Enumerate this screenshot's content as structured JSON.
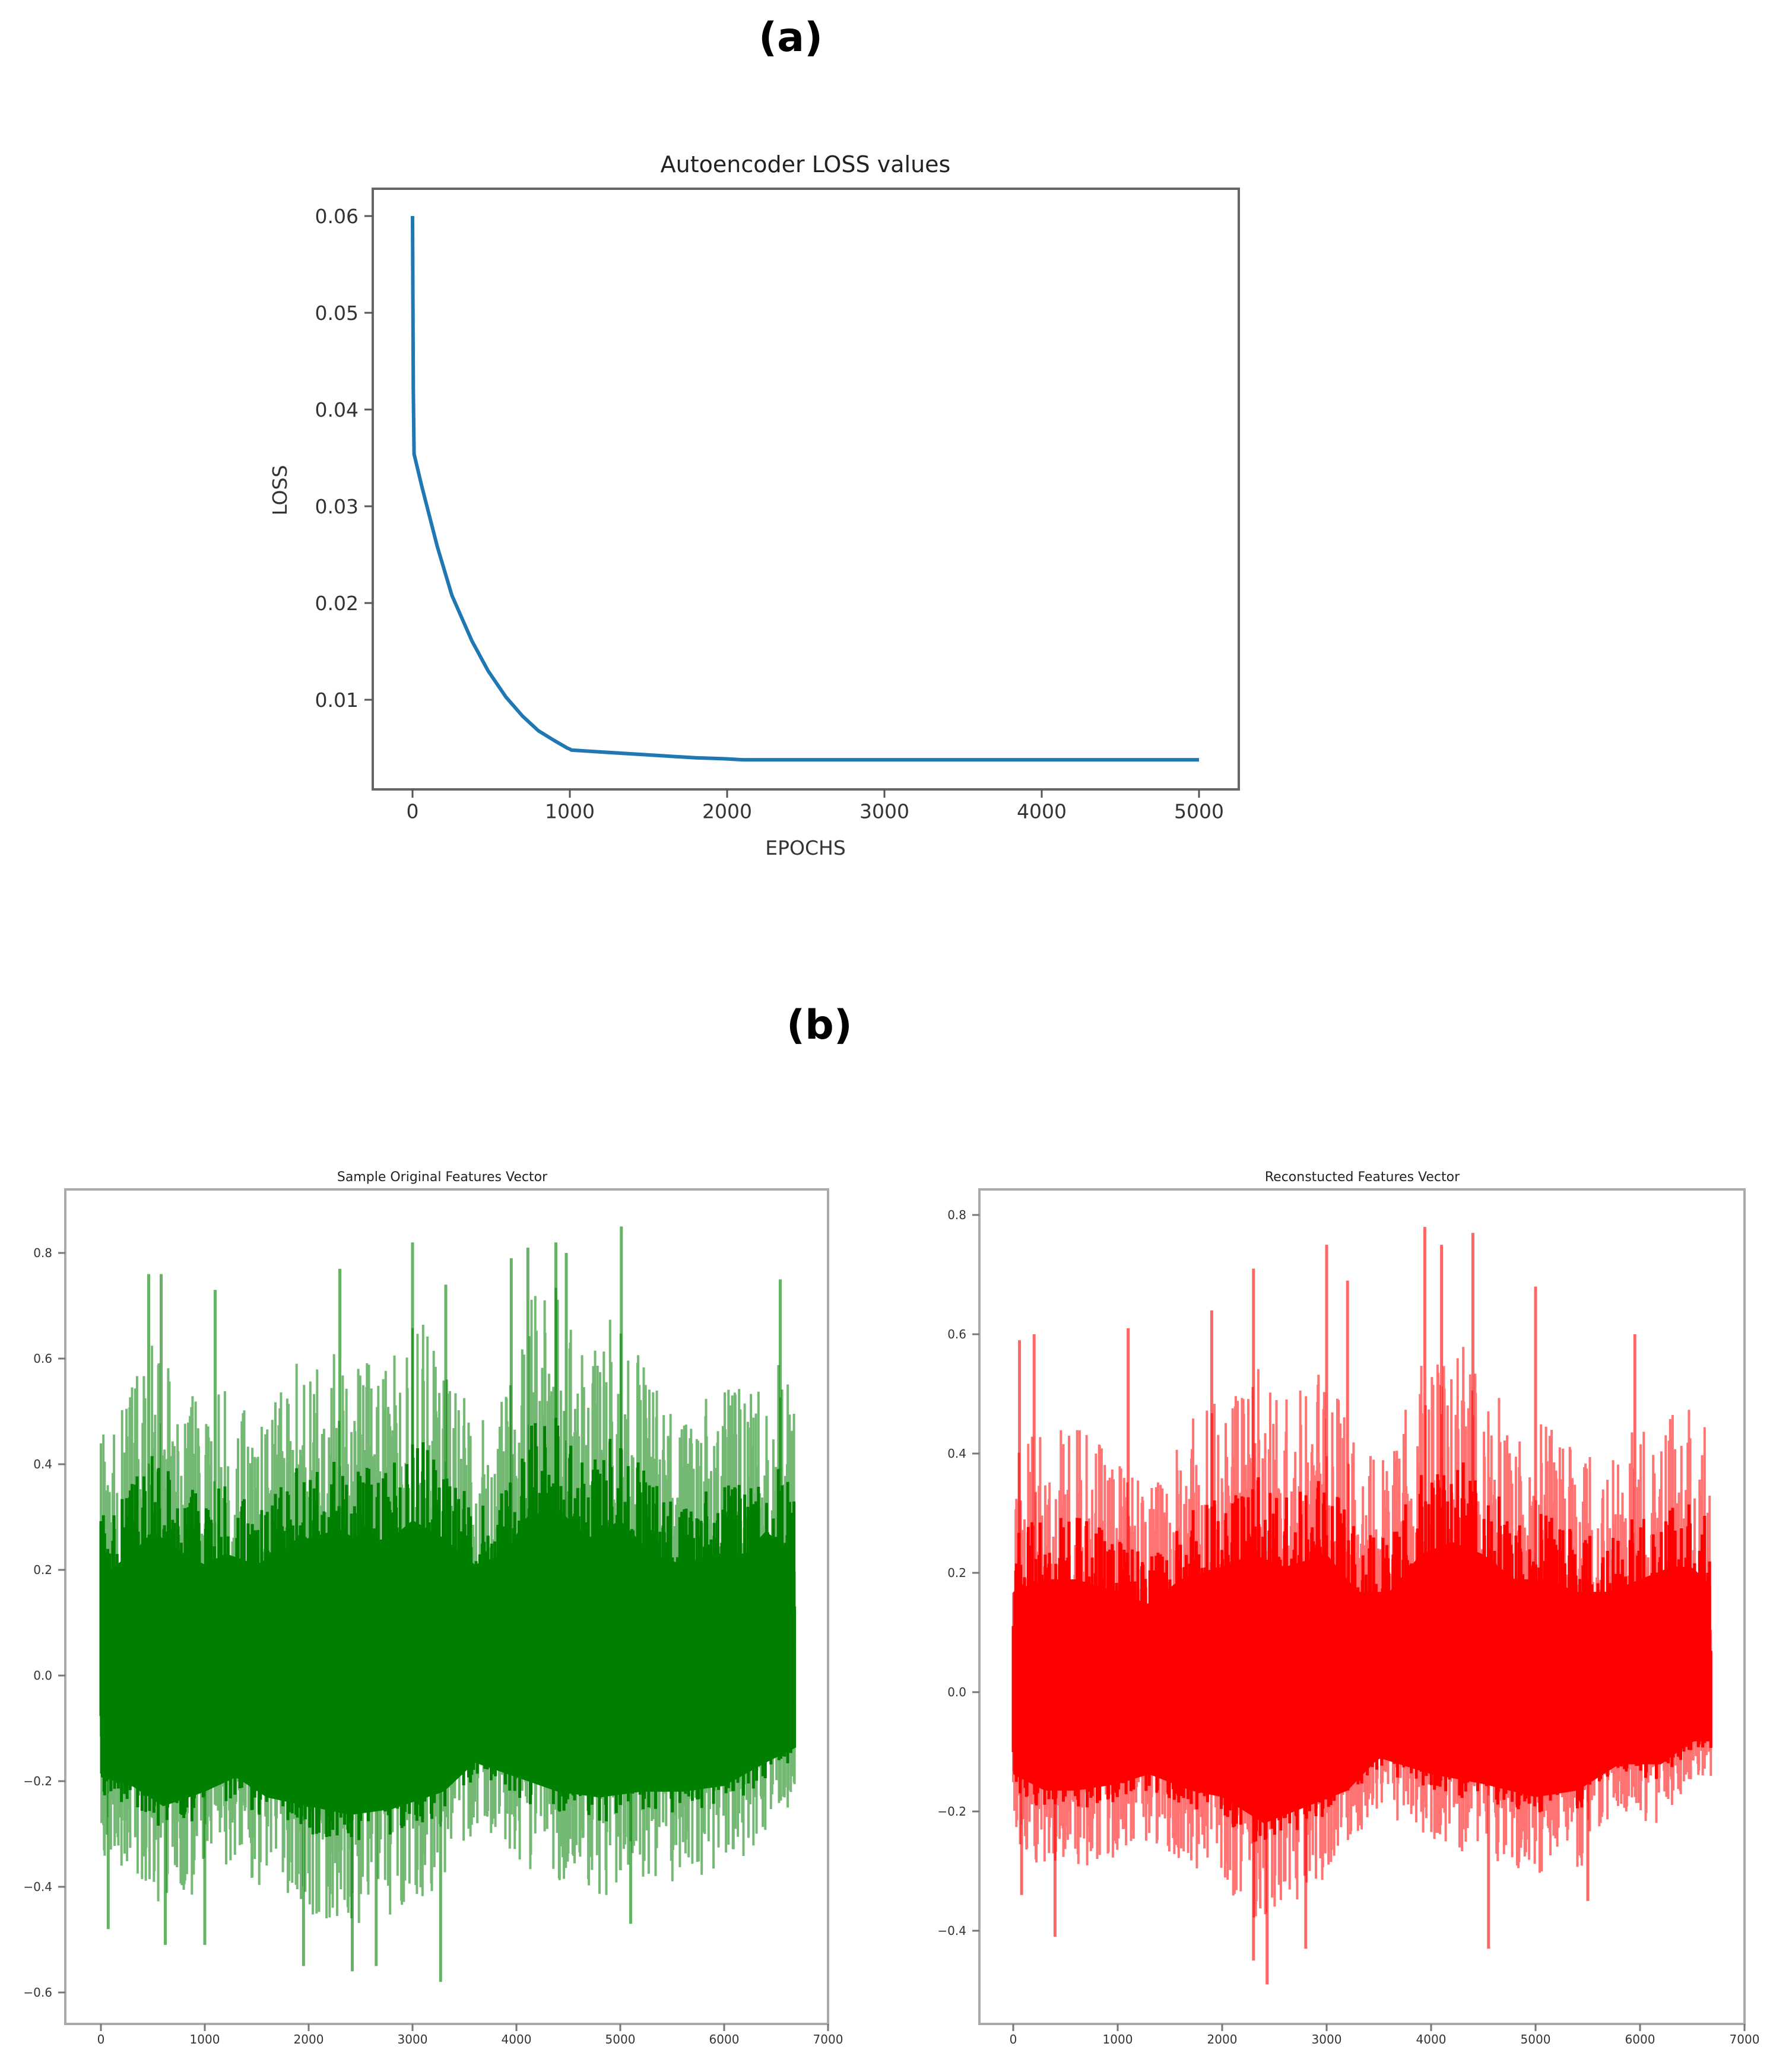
{
  "figure": {
    "panel_a_label": "(a)",
    "panel_b_label": "(b)"
  },
  "chart_data": [
    {
      "id": "loss",
      "type": "line",
      "title": "Autoencoder LOSS values",
      "xlabel": "EPOCHS",
      "ylabel": "LOSS",
      "xlim": [
        -230,
        5230
      ],
      "ylim": [
        0.0012,
        0.0632
      ],
      "xticks": [
        0,
        1000,
        2000,
        3000,
        4000,
        5000
      ],
      "xtick_labels": [
        "0",
        "1000",
        "2000",
        "3000",
        "4000",
        "5000"
      ],
      "yticks": [
        0.01,
        0.02,
        0.03,
        0.04,
        0.05,
        0.06
      ],
      "ytick_labels": [
        "0.01",
        "0.02",
        "0.03",
        "0.04",
        "0.05",
        "0.06"
      ],
      "grid": false,
      "legend": null,
      "color": "#1f77b4",
      "series": [
        {
          "name": "loss",
          "x": [
            0,
            5,
            10,
            60,
            158,
            250,
            377,
            480,
            593,
            700,
            800,
            900,
            985,
            1000,
            1010,
            1200,
            1500,
            1800,
            1981,
            2100,
            2500,
            3000,
            3500,
            4000,
            4500,
            5000
          ],
          "y": [
            0.06,
            0.042,
            0.0354,
            0.032,
            0.0258,
            0.0208,
            0.0161,
            0.013,
            0.0103,
            0.0083,
            0.0068,
            0.0058,
            0.005,
            0.0049,
            0.0048,
            0.0046,
            0.0043,
            0.004,
            0.0039,
            0.0038,
            0.0038,
            0.0038,
            0.0038,
            0.0038,
            0.0038,
            0.0038
          ]
        }
      ]
    },
    {
      "id": "original",
      "type": "line",
      "title": "Sample Original Features Vector",
      "xlabel": "",
      "ylabel": "",
      "xlim": [
        -340,
        7000
      ],
      "ylim": [
        -0.665,
        0.915
      ],
      "xticks": [
        0,
        1000,
        2000,
        3000,
        4000,
        5000,
        6000,
        7000
      ],
      "xtick_labels": [
        "0",
        "1000",
        "2000",
        "3000",
        "4000",
        "5000",
        "6000",
        "7000"
      ],
      "yticks": [
        -0.6,
        -0.4,
        -0.2,
        0.0,
        0.2,
        0.4,
        0.6,
        0.8
      ],
      "ytick_labels": [
        "−0.6",
        "−0.4",
        "−0.2",
        "0.0",
        "0.2",
        "0.4",
        "0.6",
        "0.8"
      ],
      "grid": false,
      "legend": null,
      "color": "#008000",
      "n_points": 6680,
      "description": "dense noisy signal centered near 0, typical range -0.3 to 0.4",
      "envelope_upper": {
        "x": [
          0,
          300,
          500,
          800,
          1000,
          1200,
          1500,
          1800,
          2000,
          2300,
          2500,
          2800,
          3000,
          3300,
          3600,
          3900,
          4100,
          4400,
          4700,
          5000,
          5300,
          5600,
          5900,
          6200,
          6400,
          6680
        ],
        "y": [
          0.45,
          0.55,
          0.65,
          0.55,
          0.5,
          0.55,
          0.5,
          0.58,
          0.62,
          0.66,
          0.6,
          0.62,
          0.7,
          0.62,
          0.5,
          0.55,
          0.72,
          0.75,
          0.62,
          0.7,
          0.55,
          0.5,
          0.55,
          0.55,
          0.65,
          0.55
        ]
      },
      "envelope_lower": {
        "x": [
          0,
          300,
          600,
          1000,
          1300,
          1600,
          2000,
          2400,
          2800,
          3300,
          3600,
          4000,
          4400,
          4800,
          5200,
          5600,
          6000,
          6400,
          6680
        ],
        "y": [
          -0.35,
          -0.38,
          -0.45,
          -0.4,
          -0.35,
          -0.42,
          -0.45,
          -0.48,
          -0.46,
          -0.4,
          -0.3,
          -0.35,
          -0.4,
          -0.42,
          -0.4,
          -0.4,
          -0.38,
          -0.3,
          -0.25
        ]
      },
      "notable_peaks": [
        {
          "x": 460,
          "y": 0.76
        },
        {
          "x": 580,
          "y": 0.76
        },
        {
          "x": 1100,
          "y": 0.73
        },
        {
          "x": 2300,
          "y": 0.77
        },
        {
          "x": 3000,
          "y": 0.82
        },
        {
          "x": 3320,
          "y": 0.74
        },
        {
          "x": 3950,
          "y": 0.79
        },
        {
          "x": 4110,
          "y": 0.81
        },
        {
          "x": 4380,
          "y": 0.82
        },
        {
          "x": 4480,
          "y": 0.8
        },
        {
          "x": 5010,
          "y": 0.85
        },
        {
          "x": 6540,
          "y": 0.75
        }
      ],
      "notable_troughs": [
        {
          "x": 70,
          "y": -0.48
        },
        {
          "x": 620,
          "y": -0.51
        },
        {
          "x": 1000,
          "y": -0.51
        },
        {
          "x": 1950,
          "y": -0.55
        },
        {
          "x": 2420,
          "y": -0.56
        },
        {
          "x": 2650,
          "y": -0.55
        },
        {
          "x": 3270,
          "y": -0.58
        },
        {
          "x": 5100,
          "y": -0.47
        }
      ]
    },
    {
      "id": "reconstructed",
      "type": "line",
      "title": "Reconstucted Features Vector",
      "xlabel": "",
      "ylabel": "",
      "xlim": [
        -340,
        7000
      ],
      "ylim": [
        -0.55,
        0.845
      ],
      "xticks": [
        0,
        1000,
        2000,
        3000,
        4000,
        5000,
        6000,
        7000
      ],
      "xtick_labels": [
        "0",
        "1000",
        "2000",
        "3000",
        "4000",
        "5000",
        "6000",
        "7000"
      ],
      "yticks": [
        -0.4,
        -0.2,
        0.0,
        0.2,
        0.4,
        0.6,
        0.8
      ],
      "ytick_labels": [
        "−0.4",
        "−0.2",
        "0.0",
        "0.2",
        "0.4",
        "0.6",
        "0.8"
      ],
      "grid": false,
      "legend": null,
      "color": "#ff0000",
      "n_points": 6680,
      "description": "dense noisy signal centered near 0, typical range -0.25 to 0.35",
      "envelope_upper": {
        "x": [
          0,
          300,
          600,
          1000,
          1300,
          1600,
          2000,
          2300,
          2600,
          3000,
          3300,
          3600,
          3900,
          4200,
          4500,
          4800,
          5100,
          5400,
          5700,
          6000,
          6300,
          6500,
          6680
        ],
        "y": [
          0.4,
          0.45,
          0.45,
          0.4,
          0.35,
          0.45,
          0.5,
          0.55,
          0.5,
          0.55,
          0.4,
          0.4,
          0.55,
          0.6,
          0.55,
          0.45,
          0.45,
          0.4,
          0.4,
          0.45,
          0.5,
          0.5,
          0.42
        ]
      },
      "envelope_lower": {
        "x": [
          0,
          300,
          600,
          1000,
          1300,
          1700,
          2000,
          2400,
          2800,
          3200,
          3500,
          4000,
          4500,
          5000,
          5400,
          5800,
          6200,
          6500,
          6680
        ],
        "y": [
          -0.25,
          -0.3,
          -0.3,
          -0.28,
          -0.25,
          -0.3,
          -0.32,
          -0.4,
          -0.35,
          -0.3,
          -0.2,
          -0.25,
          -0.28,
          -0.32,
          -0.3,
          -0.22,
          -0.22,
          -0.15,
          -0.15
        ]
      },
      "notable_peaks": [
        {
          "x": 60,
          "y": 0.59
        },
        {
          "x": 200,
          "y": 0.6
        },
        {
          "x": 1100,
          "y": 0.61
        },
        {
          "x": 1900,
          "y": 0.64
        },
        {
          "x": 2300,
          "y": 0.71
        },
        {
          "x": 3000,
          "y": 0.75
        },
        {
          "x": 3200,
          "y": 0.69
        },
        {
          "x": 3940,
          "y": 0.78
        },
        {
          "x": 4100,
          "y": 0.75
        },
        {
          "x": 4400,
          "y": 0.77
        },
        {
          "x": 5000,
          "y": 0.68
        },
        {
          "x": 5950,
          "y": 0.6
        }
      ],
      "notable_troughs": [
        {
          "x": 80,
          "y": -0.34
        },
        {
          "x": 400,
          "y": -0.41
        },
        {
          "x": 2300,
          "y": -0.45
        },
        {
          "x": 2430,
          "y": -0.49
        },
        {
          "x": 2800,
          "y": -0.43
        },
        {
          "x": 4550,
          "y": -0.43
        },
        {
          "x": 5500,
          "y": -0.35
        }
      ]
    }
  ]
}
